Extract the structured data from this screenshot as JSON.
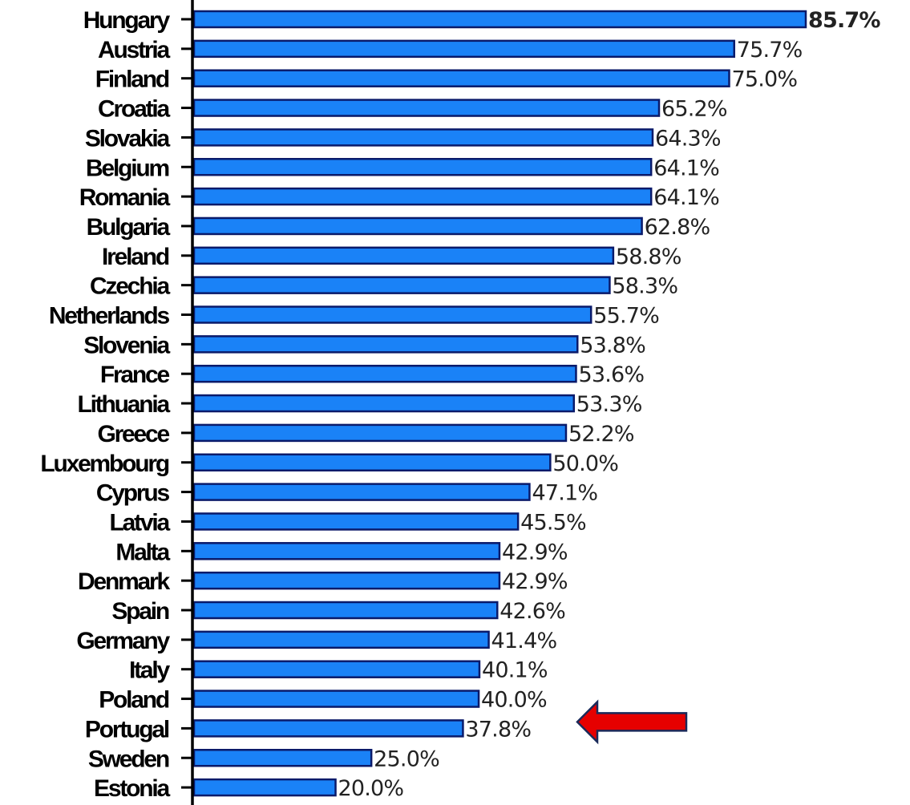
{
  "chart_data": {
    "type": "bar",
    "orientation": "horizontal",
    "title": "",
    "xlabel": "",
    "ylabel": "",
    "categories": [
      "Hungary",
      "Austria",
      "Finland",
      "Croatia",
      "Slovakia",
      "Belgium",
      "Romania",
      "Bulgaria",
      "Ireland",
      "Czechia",
      "Netherlands",
      "Slovenia",
      "France",
      "Lithuania",
      "Greece",
      "Luxembourg",
      "Cyprus",
      "Latvia",
      "Malta",
      "Denmark",
      "Spain",
      "Germany",
      "Italy",
      "Poland",
      "Portugal",
      "Sweden",
      "Estonia"
    ],
    "values": [
      85.7,
      75.7,
      75.0,
      65.2,
      64.3,
      64.1,
      64.1,
      62.8,
      58.8,
      58.3,
      55.7,
      53.8,
      53.6,
      53.3,
      52.2,
      50.0,
      47.1,
      45.5,
      42.9,
      42.9,
      42.6,
      41.4,
      40.1,
      40.0,
      37.8,
      25.0,
      20.0
    ],
    "value_labels": [
      "85.7%",
      "75.7%",
      "75.0%",
      "65.2%",
      "64.3%",
      "64.1%",
      "64.1%",
      "62.8%",
      "58.8%",
      "58.3%",
      "55.7%",
      "53.8%",
      "53.6%",
      "53.3%",
      "52.2%",
      "50.0%",
      "47.1%",
      "45.5%",
      "42.9%",
      "42.9%",
      "42.6%",
      "41.4%",
      "40.1%",
      "40.0%",
      "37.8%",
      "25.0%",
      "20.0%"
    ],
    "xlim": [
      0,
      85.7
    ],
    "grid": false,
    "highlight": {
      "category": "Portugal",
      "marker": "arrow-pointing-left"
    }
  },
  "colors": {
    "bar_fill": "#1a82f7",
    "bar_edge": "#0a1a6a",
    "axis": "#000000",
    "arrow_fill": "#e60000",
    "arrow_edge": "#1a2a5a"
  }
}
